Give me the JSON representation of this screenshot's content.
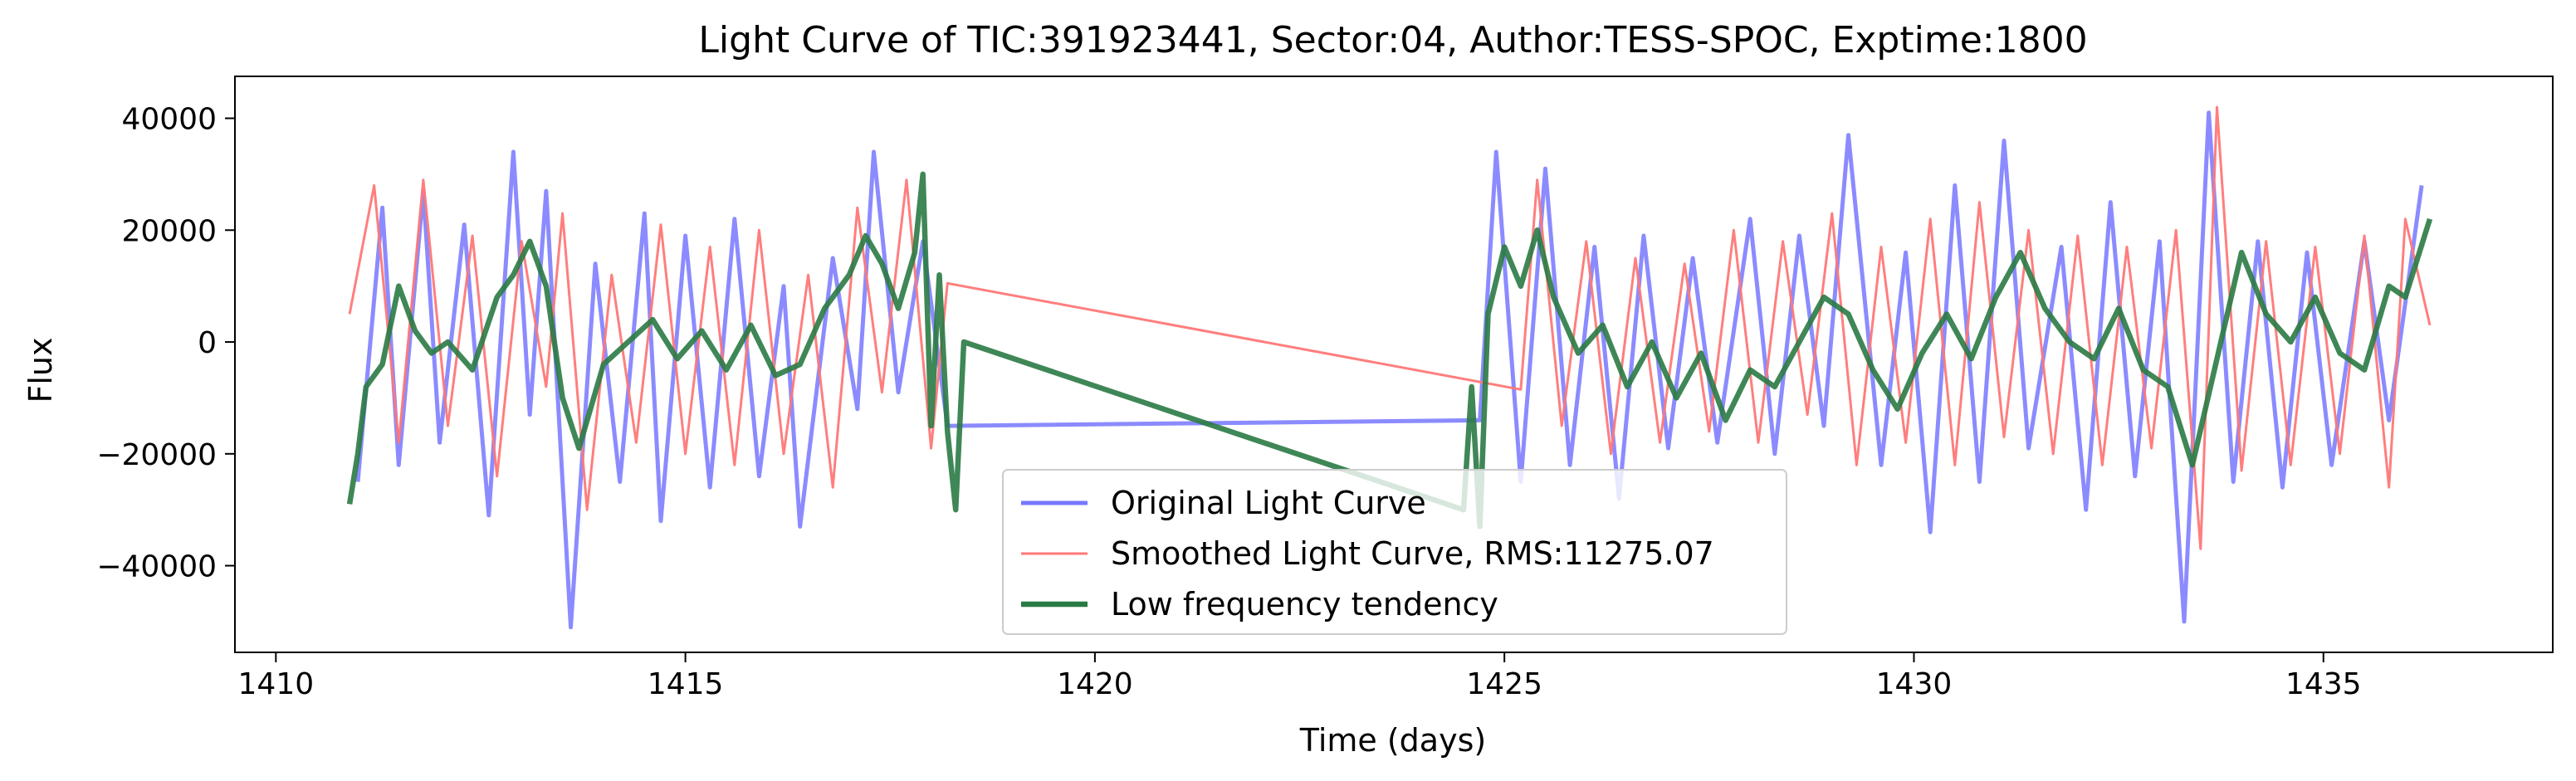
{
  "chart_data": {
    "type": "line",
    "title": "Light Curve of TIC:391923441, Sector:04, Author:TESS-SPOC, Exptime:1800",
    "xlabel": "Time (days)",
    "ylabel": "Flux",
    "xlim": [
      1409.5,
      1437.8
    ],
    "ylim": [
      -55500,
      47500
    ],
    "xticks": [
      1410,
      1415,
      1420,
      1425,
      1430,
      1435
    ],
    "yticks": [
      -40000,
      -20000,
      0,
      20000,
      40000
    ],
    "xtick_labels": [
      "1410",
      "1415",
      "1420",
      "1425",
      "1430",
      "1435"
    ],
    "ytick_labels": [
      "−40000",
      "−20000",
      "0",
      "20000",
      "40000"
    ],
    "grid": false,
    "legend_position": "lower center",
    "segments": [
      [
        1410.9,
        1418.3
      ],
      [
        1424.6,
        1436.3
      ]
    ],
    "series": [
      {
        "name": "Original Light Curve",
        "color": "#7777ff",
        "values_description": "noisy",
        "points": [
          [
            1411.0,
            -25000
          ],
          [
            1411.3,
            24000
          ],
          [
            1411.5,
            -22000
          ],
          [
            1411.8,
            27000
          ],
          [
            1412.0,
            -18000
          ],
          [
            1412.3,
            21000
          ],
          [
            1412.6,
            -31000
          ],
          [
            1412.9,
            34000
          ],
          [
            1413.1,
            -13000
          ],
          [
            1413.3,
            27000
          ],
          [
            1413.6,
            -51000
          ],
          [
            1413.9,
            14000
          ],
          [
            1414.2,
            -25000
          ],
          [
            1414.5,
            23000
          ],
          [
            1414.7,
            -32000
          ],
          [
            1415.0,
            19000
          ],
          [
            1415.3,
            -26000
          ],
          [
            1415.6,
            22000
          ],
          [
            1415.9,
            -24000
          ],
          [
            1416.2,
            10000
          ],
          [
            1416.4,
            -33000
          ],
          [
            1416.8,
            15000
          ],
          [
            1417.1,
            -12000
          ],
          [
            1417.3,
            34000
          ],
          [
            1417.6,
            -9000
          ],
          [
            1417.9,
            18000
          ],
          [
            1418.2,
            -15000
          ],
          [
            1424.7,
            -14000
          ],
          [
            1424.9,
            34000
          ],
          [
            1425.2,
            -25000
          ],
          [
            1425.5,
            31000
          ],
          [
            1425.8,
            -22000
          ],
          [
            1426.1,
            17000
          ],
          [
            1426.4,
            -28000
          ],
          [
            1426.7,
            19000
          ],
          [
            1427.0,
            -19000
          ],
          [
            1427.3,
            15000
          ],
          [
            1427.6,
            -18000
          ],
          [
            1428.0,
            22000
          ],
          [
            1428.3,
            -20000
          ],
          [
            1428.6,
            19000
          ],
          [
            1428.9,
            -15000
          ],
          [
            1429.2,
            37000
          ],
          [
            1429.6,
            -22000
          ],
          [
            1429.9,
            16000
          ],
          [
            1430.2,
            -34000
          ],
          [
            1430.5,
            28000
          ],
          [
            1430.8,
            -25000
          ],
          [
            1431.1,
            36000
          ],
          [
            1431.4,
            -19000
          ],
          [
            1431.8,
            17000
          ],
          [
            1432.1,
            -30000
          ],
          [
            1432.4,
            25000
          ],
          [
            1432.7,
            -24000
          ],
          [
            1433.0,
            18000
          ],
          [
            1433.3,
            -50000
          ],
          [
            1433.6,
            41000
          ],
          [
            1433.9,
            -25000
          ],
          [
            1434.2,
            18000
          ],
          [
            1434.5,
            -26000
          ],
          [
            1434.8,
            16000
          ],
          [
            1435.1,
            -22000
          ],
          [
            1435.5,
            18000
          ],
          [
            1435.8,
            -14000
          ],
          [
            1436.2,
            28000
          ]
        ]
      },
      {
        "name": "Smoothed Light Curve, RMS:11275.07",
        "color": "#ff7777",
        "points": [
          [
            1410.9,
            5000
          ],
          [
            1411.2,
            28000
          ],
          [
            1411.5,
            -18000
          ],
          [
            1411.8,
            29000
          ],
          [
            1412.1,
            -15000
          ],
          [
            1412.4,
            19000
          ],
          [
            1412.7,
            -24000
          ],
          [
            1413.0,
            18000
          ],
          [
            1413.3,
            -8000
          ],
          [
            1413.5,
            23000
          ],
          [
            1413.8,
            -30000
          ],
          [
            1414.1,
            12000
          ],
          [
            1414.4,
            -18000
          ],
          [
            1414.7,
            21000
          ],
          [
            1415.0,
            -20000
          ],
          [
            1415.3,
            17000
          ],
          [
            1415.6,
            -22000
          ],
          [
            1415.9,
            20000
          ],
          [
            1416.2,
            -20000
          ],
          [
            1416.5,
            12000
          ],
          [
            1416.8,
            -26000
          ],
          [
            1417.1,
            24000
          ],
          [
            1417.4,
            -9000
          ],
          [
            1417.7,
            29000
          ],
          [
            1418.0,
            -19000
          ],
          [
            1418.2,
            10500
          ],
          [
            1425.2,
            -8500
          ],
          [
            1425.4,
            29000
          ],
          [
            1425.7,
            -15000
          ],
          [
            1426.0,
            18000
          ],
          [
            1426.3,
            -20000
          ],
          [
            1426.6,
            15000
          ],
          [
            1426.9,
            -18000
          ],
          [
            1427.2,
            14000
          ],
          [
            1427.5,
            -16000
          ],
          [
            1427.8,
            20000
          ],
          [
            1428.1,
            -18000
          ],
          [
            1428.4,
            18000
          ],
          [
            1428.7,
            -13000
          ],
          [
            1429.0,
            23000
          ],
          [
            1429.3,
            -22000
          ],
          [
            1429.6,
            17000
          ],
          [
            1429.9,
            -18000
          ],
          [
            1430.2,
            22000
          ],
          [
            1430.5,
            -22000
          ],
          [
            1430.8,
            25000
          ],
          [
            1431.1,
            -17000
          ],
          [
            1431.4,
            20000
          ],
          [
            1431.7,
            -20000
          ],
          [
            1432.0,
            19000
          ],
          [
            1432.3,
            -22000
          ],
          [
            1432.6,
            17000
          ],
          [
            1432.9,
            -19000
          ],
          [
            1433.2,
            20000
          ],
          [
            1433.5,
            -37000
          ],
          [
            1433.7,
            42000
          ],
          [
            1434.0,
            -23000
          ],
          [
            1434.3,
            18000
          ],
          [
            1434.6,
            -22000
          ],
          [
            1434.9,
            17000
          ],
          [
            1435.2,
            -20000
          ],
          [
            1435.5,
            19000
          ],
          [
            1435.8,
            -26000
          ],
          [
            1436.0,
            22000
          ],
          [
            1436.3,
            3000
          ]
        ]
      },
      {
        "name": "Low frequency tendency",
        "color": "#2a7a44",
        "points": [
          [
            1410.9,
            -29000
          ],
          [
            1411.0,
            -20000
          ],
          [
            1411.1,
            -8000
          ],
          [
            1411.3,
            -4000
          ],
          [
            1411.5,
            10000
          ],
          [
            1411.7,
            2000
          ],
          [
            1411.9,
            -2000
          ],
          [
            1412.1,
            0
          ],
          [
            1412.4,
            -5000
          ],
          [
            1412.7,
            8000
          ],
          [
            1412.9,
            12000
          ],
          [
            1413.1,
            18000
          ],
          [
            1413.3,
            10000
          ],
          [
            1413.5,
            -10000
          ],
          [
            1413.7,
            -19000
          ],
          [
            1414.0,
            -4000
          ],
          [
            1414.3,
            0
          ],
          [
            1414.6,
            4000
          ],
          [
            1414.9,
            -3000
          ],
          [
            1415.2,
            2000
          ],
          [
            1415.5,
            -5000
          ],
          [
            1415.8,
            3000
          ],
          [
            1416.1,
            -6000
          ],
          [
            1416.4,
            -4000
          ],
          [
            1416.7,
            6000
          ],
          [
            1417.0,
            12000
          ],
          [
            1417.2,
            19000
          ],
          [
            1417.4,
            14000
          ],
          [
            1417.6,
            6000
          ],
          [
            1417.8,
            16000
          ],
          [
            1417.9,
            30000
          ],
          [
            1418.0,
            -15000
          ],
          [
            1418.1,
            12000
          ],
          [
            1418.2,
            -16000
          ],
          [
            1418.3,
            -30000
          ],
          [
            1418.4,
            0
          ],
          [
            1424.5,
            -30000
          ],
          [
            1424.6,
            -8000
          ],
          [
            1424.7,
            -33000
          ],
          [
            1424.8,
            5000
          ],
          [
            1425.0,
            17000
          ],
          [
            1425.2,
            10000
          ],
          [
            1425.4,
            20000
          ],
          [
            1425.6,
            8000
          ],
          [
            1425.9,
            -2000
          ],
          [
            1426.2,
            3000
          ],
          [
            1426.5,
            -8000
          ],
          [
            1426.8,
            0
          ],
          [
            1427.1,
            -10000
          ],
          [
            1427.4,
            -2000
          ],
          [
            1427.7,
            -14000
          ],
          [
            1428.0,
            -5000
          ],
          [
            1428.3,
            -8000
          ],
          [
            1428.6,
            0
          ],
          [
            1428.9,
            8000
          ],
          [
            1429.2,
            5000
          ],
          [
            1429.5,
            -5000
          ],
          [
            1429.8,
            -12000
          ],
          [
            1430.1,
            -2000
          ],
          [
            1430.4,
            5000
          ],
          [
            1430.7,
            -3000
          ],
          [
            1431.0,
            8000
          ],
          [
            1431.3,
            16000
          ],
          [
            1431.6,
            6000
          ],
          [
            1431.9,
            0
          ],
          [
            1432.2,
            -3000
          ],
          [
            1432.5,
            6000
          ],
          [
            1432.8,
            -5000
          ],
          [
            1433.1,
            -8000
          ],
          [
            1433.4,
            -22000
          ],
          [
            1433.7,
            -3000
          ],
          [
            1434.0,
            16000
          ],
          [
            1434.3,
            5000
          ],
          [
            1434.6,
            0
          ],
          [
            1434.9,
            8000
          ],
          [
            1435.2,
            -2000
          ],
          [
            1435.5,
            -5000
          ],
          [
            1435.8,
            10000
          ],
          [
            1436.0,
            8000
          ],
          [
            1436.3,
            22000
          ]
        ]
      }
    ]
  }
}
